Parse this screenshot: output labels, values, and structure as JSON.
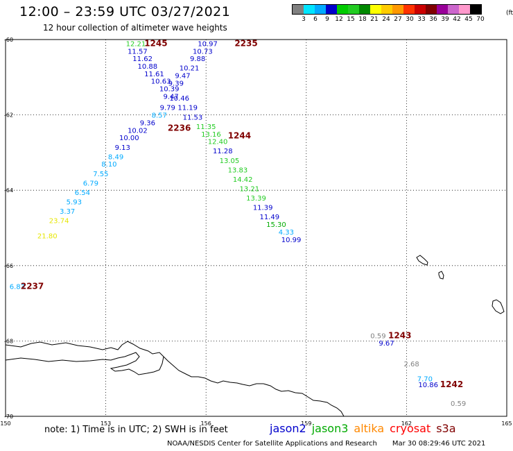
{
  "header": {
    "title": "12:00 – 23:59 UTC 03/27/2021",
    "subtitle": "12 hour collection of altimeter wave heights"
  },
  "colorbar": {
    "colors": [
      "#808080",
      "#00e5ff",
      "#00aaff",
      "#0000cc",
      "#00cc00",
      "#22cc22",
      "#008800",
      "#ffff00",
      "#ffcc00",
      "#ff9900",
      "#ff3300",
      "#cc0000",
      "#800000",
      "#990099",
      "#cc66cc",
      "#ff99cc",
      "#000000"
    ],
    "labels": [
      "3",
      "6",
      "9",
      "12",
      "15",
      "18",
      "21",
      "24",
      "27",
      "30",
      "33",
      "36",
      "39",
      "42",
      "45",
      "70"
    ],
    "unit": "(ft)"
  },
  "map": {
    "lon_ticks": [
      "150",
      "153",
      "156",
      "159",
      "162",
      "165"
    ],
    "lat_ticks": [
      "-60",
      "-62",
      "-64",
      "-66",
      "-68",
      "-70"
    ]
  },
  "tracks": {
    "labels": [
      {
        "text": "1245",
        "lon": 154.5,
        "lat": -60.1,
        "color": "#800000",
        "bold": true
      },
      {
        "text": "2235",
        "lon": 157.2,
        "lat": -60.1,
        "color": "#800000",
        "bold": true
      },
      {
        "text": "2236",
        "lon": 155.2,
        "lat": -62.35,
        "color": "#800000",
        "bold": true
      },
      {
        "text": "1244",
        "lon": 157.0,
        "lat": -62.55,
        "color": "#800000",
        "bold": true
      },
      {
        "text": "2237",
        "lon": 150.8,
        "lat": -66.55,
        "color": "#800000",
        "bold": true
      },
      {
        "text": "1243",
        "lon": 161.8,
        "lat": -67.85,
        "color": "#800000",
        "bold": true
      },
      {
        "text": "1242",
        "lon": 163.35,
        "lat": -69.15,
        "color": "#800000",
        "bold": true
      }
    ],
    "points": [
      {
        "v": "12.21",
        "lon": 153.9,
        "lat": -60.1,
        "color": "#22cc22"
      },
      {
        "v": "11.57",
        "lon": 153.95,
        "lat": -60.3,
        "color": "#0000cc"
      },
      {
        "v": "11.62",
        "lon": 154.1,
        "lat": -60.5,
        "color": "#0000cc"
      },
      {
        "v": "10.88",
        "lon": 154.25,
        "lat": -60.7,
        "color": "#0000cc"
      },
      {
        "v": "11.61",
        "lon": 154.45,
        "lat": -60.9,
        "color": "#0000cc"
      },
      {
        "v": "10.63",
        "lon": 154.65,
        "lat": -61.1,
        "color": "#0000cc"
      },
      {
        "v": "10.39",
        "lon": 154.9,
        "lat": -61.3,
        "color": "#0000cc"
      },
      {
        "v": "9.47",
        "lon": 154.95,
        "lat": -61.5,
        "color": "#0000cc"
      },
      {
        "v": "9.79",
        "lon": 154.85,
        "lat": -61.8,
        "color": "#0000cc"
      },
      {
        "v": "8.57",
        "lon": 154.6,
        "lat": -62.0,
        "color": "#00aaff"
      },
      {
        "v": "9.36",
        "lon": 154.25,
        "lat": -62.2,
        "color": "#0000cc"
      },
      {
        "v": "10.02",
        "lon": 153.95,
        "lat": -62.4,
        "color": "#0000cc"
      },
      {
        "v": "10.00",
        "lon": 153.7,
        "lat": -62.6,
        "color": "#0000cc"
      },
      {
        "v": "9.13",
        "lon": 153.5,
        "lat": -62.85,
        "color": "#0000cc"
      },
      {
        "v": "8.49",
        "lon": 153.3,
        "lat": -63.1,
        "color": "#00aaff"
      },
      {
        "v": "8.10",
        "lon": 153.1,
        "lat": -63.3,
        "color": "#00aaff"
      },
      {
        "v": "7.55",
        "lon": 152.85,
        "lat": -63.55,
        "color": "#00aaff"
      },
      {
        "v": "6.79",
        "lon": 152.55,
        "lat": -63.8,
        "color": "#00aaff"
      },
      {
        "v": "6.54",
        "lon": 152.3,
        "lat": -64.05,
        "color": "#00aaff"
      },
      {
        "v": "5.93",
        "lon": 152.05,
        "lat": -64.3,
        "color": "#00aaff"
      },
      {
        "v": "3.37",
        "lon": 151.85,
        "lat": -64.55,
        "color": "#00aaff"
      },
      {
        "v": "23.74",
        "lon": 151.6,
        "lat": -64.8,
        "color": "#e6e600"
      },
      {
        "v": "21.80",
        "lon": 151.25,
        "lat": -65.2,
        "color": "#e6e600"
      },
      {
        "v": "10.97",
        "lon": 156.05,
        "lat": -60.1,
        "color": "#0000cc"
      },
      {
        "v": "10.73",
        "lon": 155.9,
        "lat": -60.3,
        "color": "#0000cc"
      },
      {
        "v": "9.88",
        "lon": 155.75,
        "lat": -60.5,
        "color": "#0000cc"
      },
      {
        "v": "10.21",
        "lon": 155.5,
        "lat": -60.75,
        "color": "#0000cc"
      },
      {
        "v": "9.47",
        "lon": 155.3,
        "lat": -60.95,
        "color": "#0000cc"
      },
      {
        "v": "9.39",
        "lon": 155.1,
        "lat": -61.15,
        "color": "#0000cc"
      },
      {
        "v": "10.46",
        "lon": 155.2,
        "lat": -61.55,
        "color": "#0000cc"
      },
      {
        "v": "11.19",
        "lon": 155.45,
        "lat": -61.8,
        "color": "#0000cc"
      },
      {
        "v": "11.53",
        "lon": 155.6,
        "lat": -62.05,
        "color": "#0000cc"
      },
      {
        "v": "11.35",
        "lon": 156.0,
        "lat": -62.3,
        "color": "#22cc22"
      },
      {
        "v": "13.16",
        "lon": 156.15,
        "lat": -62.5,
        "color": "#22cc22"
      },
      {
        "v": "12.40",
        "lon": 156.35,
        "lat": -62.7,
        "color": "#22cc22"
      },
      {
        "v": "11.28",
        "lon": 156.5,
        "lat": -62.95,
        "color": "#0000cc"
      },
      {
        "v": "13.05",
        "lon": 156.7,
        "lat": -63.2,
        "color": "#22cc22"
      },
      {
        "v": "13.83",
        "lon": 156.95,
        "lat": -63.45,
        "color": "#22cc22"
      },
      {
        "v": "14.42",
        "lon": 157.1,
        "lat": -63.7,
        "color": "#22cc22"
      },
      {
        "v": "13.21",
        "lon": 157.3,
        "lat": -63.95,
        "color": "#22cc22"
      },
      {
        "v": "13.39",
        "lon": 157.5,
        "lat": -64.2,
        "color": "#22cc22"
      },
      {
        "v": "11.39",
        "lon": 157.7,
        "lat": -64.45,
        "color": "#0000cc"
      },
      {
        "v": "11.49",
        "lon": 157.9,
        "lat": -64.7,
        "color": "#0000cc"
      },
      {
        "v": "15.30",
        "lon": 158.1,
        "lat": -64.9,
        "color": "#00aa00"
      },
      {
        "v": "4.33",
        "lon": 158.4,
        "lat": -65.1,
        "color": "#00aaff"
      },
      {
        "v": "10.99",
        "lon": 158.55,
        "lat": -65.3,
        "color": "#0000cc"
      },
      {
        "v": "6.83",
        "lon": 150.35,
        "lat": -66.55,
        "color": "#00aaff"
      },
      {
        "v": "0.59",
        "lon": 161.15,
        "lat": -67.85,
        "color": "#808080"
      },
      {
        "v": "9.67",
        "lon": 161.4,
        "lat": -68.05,
        "color": "#0000cc"
      },
      {
        "v": "2.68",
        "lon": 162.15,
        "lat": -68.6,
        "color": "#808080"
      },
      {
        "v": "7.70",
        "lon": 162.55,
        "lat": -69.0,
        "color": "#00aaff"
      },
      {
        "v": "10.86",
        "lon": 162.65,
        "lat": -69.15,
        "color": "#0000cc"
      },
      {
        "v": "0.59",
        "lon": 163.55,
        "lat": -69.65,
        "color": "#808080"
      }
    ]
  },
  "footer": {
    "note": "note: 1) Time is in UTC; 2) SWH is in feet",
    "legend": [
      {
        "name": "jason2",
        "color": "#0000cc"
      },
      {
        "name": "jason3",
        "color": "#00aa00"
      },
      {
        "name": "altika",
        "color": "#ff8800"
      },
      {
        "name": "cryosat",
        "color": "#ff0000"
      },
      {
        "name": "s3a",
        "color": "#800000"
      }
    ],
    "credit": "NOAA/NESDIS Center for Satellite Applications and Research",
    "timestamp": "Mar 30 08:29:46 UTC 2021"
  }
}
